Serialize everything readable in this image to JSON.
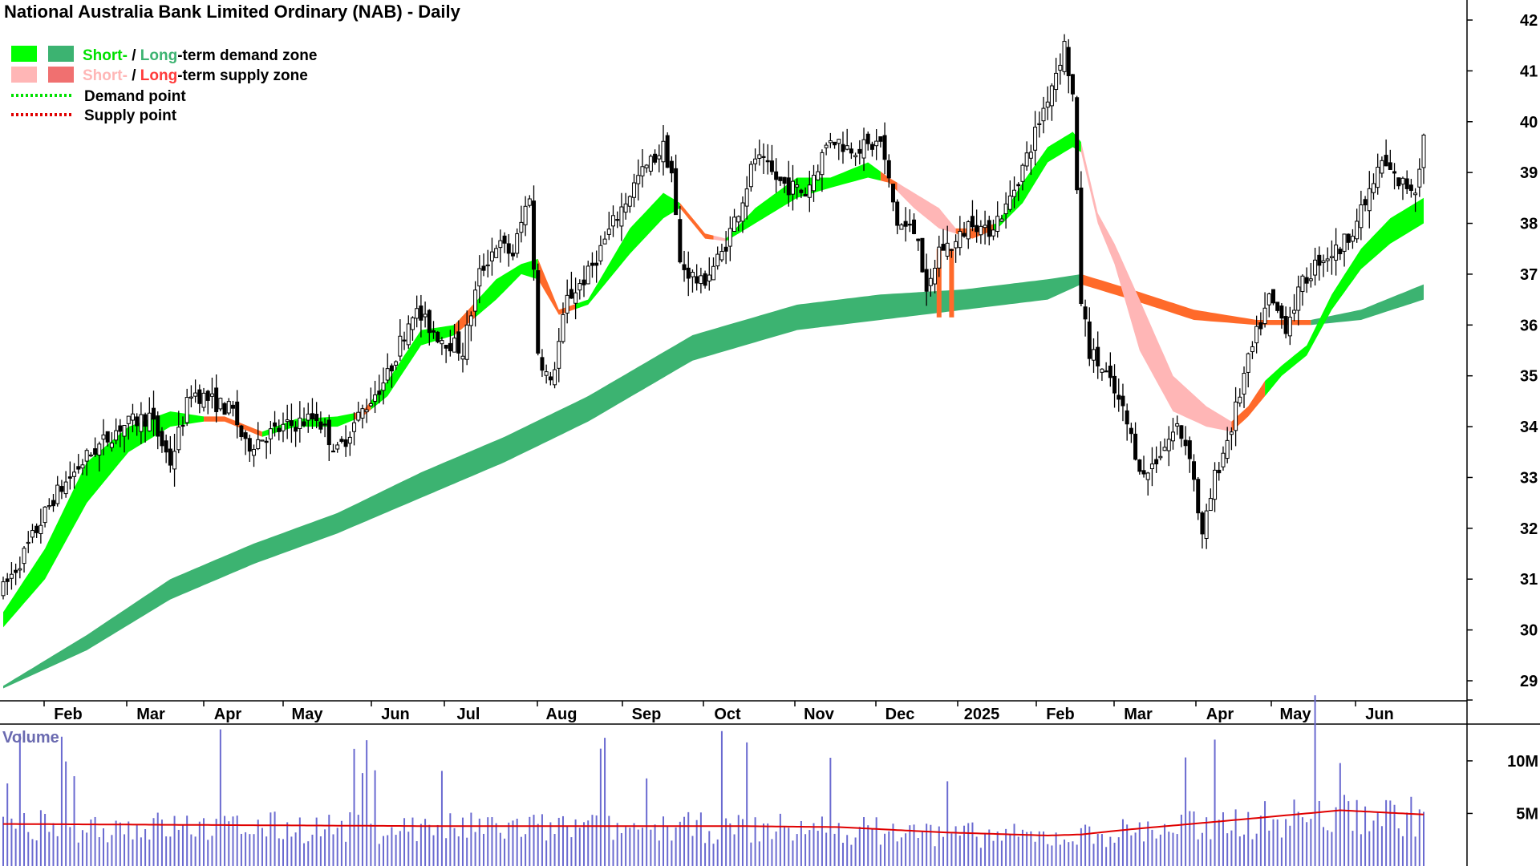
{
  "chart_data": {
    "type": "candlestick",
    "title": "National Australia Bank Limited Ordinary (NAB) - Daily",
    "legend": {
      "demand_zone": {
        "short": "Short-",
        "sep": " / ",
        "long": "Long",
        "rest": "-term demand zone"
      },
      "supply_zone": {
        "short": "Short-",
        "sep": " / ",
        "long": "Long",
        "rest": "-term supply zone"
      },
      "demand_point": "Demand point",
      "supply_point": "Supply point"
    },
    "colors": {
      "short_demand": "#00ff00",
      "long_demand": "#3cb371",
      "short_supply": "#ffb6b6",
      "long_supply": "#ff6a2a",
      "demand_point": "#00e000",
      "supply_point": "#e00000",
      "volume_bar": "#6a6ad0",
      "volume_ma": "#e00000",
      "volume_label": "#6a6ab0"
    },
    "y_axis": {
      "ticks": [
        "29",
        "30",
        "31",
        "32",
        "33",
        "34",
        "35",
        "36",
        "37",
        "38",
        "39",
        "40",
        "41",
        "42"
      ],
      "range": [
        28.5,
        42.3
      ]
    },
    "x_axis": {
      "labels": [
        "Feb",
        "Mar",
        "Apr",
        "May",
        "Jun",
        "Jul",
        "Aug",
        "Sep",
        "Oct",
        "Nov",
        "Dec",
        "2025",
        "Feb",
        "Mar",
        "Apr",
        "May",
        "Jun"
      ]
    },
    "price_path": [
      [
        0,
        30.8
      ],
      [
        5,
        31.5
      ],
      [
        12,
        32.6
      ],
      [
        20,
        33.4
      ],
      [
        28,
        34.0
      ],
      [
        35,
        34.2
      ],
      [
        40,
        33.3
      ],
      [
        45,
        34.7
      ],
      [
        50,
        34.5
      ],
      [
        55,
        34.3
      ],
      [
        58,
        33.6
      ],
      [
        62,
        33.8
      ],
      [
        68,
        34.0
      ],
      [
        75,
        34.2
      ],
      [
        80,
        33.5
      ],
      [
        85,
        34.2
      ],
      [
        92,
        35.0
      ],
      [
        98,
        36.3
      ],
      [
        104,
        35.8
      ],
      [
        110,
        35.5
      ],
      [
        114,
        37.0
      ],
      [
        118,
        37.6
      ],
      [
        122,
        37.4
      ],
      [
        126,
        38.6
      ],
      [
        128,
        35.5
      ],
      [
        131,
        34.8
      ],
      [
        135,
        36.5
      ],
      [
        140,
        37.0
      ],
      [
        146,
        38.0
      ],
      [
        152,
        38.9
      ],
      [
        158,
        39.5
      ],
      [
        160,
        39.0
      ],
      [
        162,
        37.2
      ],
      [
        167,
        36.8
      ],
      [
        172,
        37.4
      ],
      [
        177,
        38.5
      ],
      [
        180,
        39.3
      ],
      [
        186,
        38.8
      ],
      [
        192,
        38.6
      ],
      [
        198,
        39.7
      ],
      [
        202,
        39.5
      ],
      [
        207,
        39.5
      ],
      [
        210,
        39.6
      ],
      [
        214,
        38.0
      ],
      [
        219,
        37.8
      ],
      [
        221,
        36.5
      ],
      [
        224,
        37.5
      ],
      [
        228,
        37.6
      ],
      [
        232,
        38.1
      ],
      [
        235,
        37.8
      ],
      [
        240,
        38.3
      ],
      [
        245,
        39.3
      ],
      [
        250,
        40.5
      ],
      [
        254,
        41.5
      ],
      [
        256,
        40.5
      ],
      [
        258,
        36.5
      ],
      [
        260,
        35.5
      ],
      [
        264,
        35.0
      ],
      [
        268,
        34.3
      ],
      [
        273,
        33.0
      ],
      [
        277,
        33.5
      ],
      [
        281,
        34.0
      ],
      [
        284,
        33.5
      ],
      [
        287,
        31.8
      ],
      [
        290,
        33.0
      ],
      [
        294,
        34.0
      ],
      [
        297,
        35.0
      ],
      [
        300,
        35.8
      ],
      [
        303,
        36.5
      ],
      [
        307,
        36.0
      ],
      [
        311,
        36.8
      ],
      [
        315,
        37.3
      ],
      [
        320,
        37.5
      ],
      [
        325,
        38.2
      ],
      [
        330,
        39.2
      ],
      [
        334,
        38.8
      ],
      [
        338,
        38.7
      ],
      [
        340,
        39.7
      ]
    ],
    "short_zone_path": [
      [
        0,
        [
          30.05,
          30.35
        ]
      ],
      [
        10,
        [
          31.0,
          31.6
        ]
      ],
      [
        20,
        [
          32.5,
          33.3
        ]
      ],
      [
        30,
        [
          33.5,
          34.0
        ]
      ],
      [
        40,
        [
          34.0,
          34.3
        ]
      ],
      [
        48,
        [
          34.1,
          34.2
        ]
      ],
      [
        53,
        [
          34.1,
          34.2
        ]
      ],
      [
        62,
        [
          33.8,
          33.9
        ]
      ],
      [
        70,
        [
          34.0,
          34.15
        ]
      ],
      [
        80,
        [
          34.0,
          34.2
        ]
      ],
      [
        86,
        [
          34.2,
          34.3
        ]
      ],
      [
        92,
        [
          34.6,
          34.9
        ]
      ],
      [
        100,
        [
          35.6,
          35.9
        ]
      ],
      [
        108,
        [
          35.8,
          36.0
        ]
      ],
      [
        118,
        [
          36.5,
          36.9
        ]
      ],
      [
        124,
        [
          37.0,
          37.2
        ]
      ],
      [
        128,
        [
          36.9,
          37.3
        ]
      ],
      [
        133,
        [
          36.2,
          36.3
        ]
      ],
      [
        140,
        [
          36.4,
          36.5
        ]
      ],
      [
        150,
        [
          37.4,
          37.9
        ]
      ],
      [
        158,
        [
          38.1,
          38.6
        ]
      ],
      [
        162,
        [
          38.3,
          38.4
        ]
      ],
      [
        168,
        [
          37.7,
          37.8
        ]
      ],
      [
        173,
        [
          37.65,
          37.7
        ]
      ],
      [
        180,
        [
          38.0,
          38.3
        ]
      ],
      [
        190,
        [
          38.5,
          38.9
        ]
      ],
      [
        198,
        [
          38.7,
          38.9
        ]
      ],
      [
        207,
        [
          38.9,
          39.2
        ]
      ],
      [
        212,
        [
          38.8,
          38.9
        ]
      ],
      [
        218,
        [
          38.3,
          38.6
        ]
      ],
      [
        224,
        [
          37.9,
          38.3
        ]
      ],
      [
        228,
        [
          37.8,
          37.9
        ]
      ],
      [
        232,
        [
          37.7,
          37.9
        ]
      ],
      [
        238,
        [
          37.9,
          38.0
        ]
      ],
      [
        244,
        [
          38.4,
          38.8
        ]
      ],
      [
        250,
        [
          39.2,
          39.5
        ]
      ],
      [
        256,
        [
          39.5,
          39.8
        ]
      ],
      [
        258,
        [
          39.4,
          39.6
        ]
      ],
      [
        262,
        [
          38.0,
          38.2
        ]
      ],
      [
        266,
        [
          37.2,
          37.6
        ]
      ],
      [
        272,
        [
          35.5,
          36.5
        ]
      ],
      [
        280,
        [
          34.3,
          35.0
        ]
      ],
      [
        288,
        [
          34.0,
          34.4
        ]
      ],
      [
        294,
        [
          33.9,
          34.1
        ]
      ],
      [
        298,
        [
          34.2,
          34.4
        ]
      ],
      [
        302,
        [
          34.6,
          34.9
        ]
      ],
      [
        306,
        [
          35.0,
          35.2
        ]
      ],
      [
        312,
        [
          35.4,
          35.6
        ]
      ],
      [
        318,
        [
          36.3,
          36.6
        ]
      ],
      [
        325,
        [
          37.1,
          37.5
        ]
      ],
      [
        332,
        [
          37.6,
          38.1
        ]
      ],
      [
        338,
        [
          37.9,
          38.4
        ]
      ],
      [
        340,
        [
          38.0,
          38.5
        ]
      ]
    ],
    "long_zone_path": [
      [
        0,
        [
          28.85,
          28.9
        ]
      ],
      [
        20,
        [
          29.6,
          29.9
        ]
      ],
      [
        40,
        [
          30.6,
          31.0
        ]
      ],
      [
        60,
        [
          31.3,
          31.7
        ]
      ],
      [
        80,
        [
          31.9,
          32.3
        ]
      ],
      [
        100,
        [
          32.6,
          33.1
        ]
      ],
      [
        120,
        [
          33.3,
          33.8
        ]
      ],
      [
        140,
        [
          34.1,
          34.6
        ]
      ],
      [
        165,
        [
          35.3,
          35.8
        ]
      ],
      [
        190,
        [
          35.9,
          36.4
        ]
      ],
      [
        210,
        [
          36.1,
          36.6
        ]
      ],
      [
        230,
        [
          36.3,
          36.7
        ]
      ],
      [
        250,
        [
          36.5,
          36.9
        ]
      ],
      [
        258,
        [
          36.8,
          37.0
        ]
      ],
      [
        270,
        [
          36.5,
          36.7
        ]
      ],
      [
        285,
        [
          36.1,
          36.3
        ]
      ],
      [
        300,
        [
          36.0,
          36.1
        ]
      ],
      [
        313,
        [
          36.0,
          36.1
        ]
      ],
      [
        325,
        [
          36.1,
          36.3
        ]
      ],
      [
        340,
        [
          36.5,
          36.8
        ]
      ]
    ],
    "volume": {
      "label": "Volume",
      "ticks": [
        {
          "label": "10M",
          "value": 10
        },
        {
          "label": "5M",
          "value": 5
        }
      ],
      "range": [
        0,
        13.5
      ],
      "ma_path": [
        [
          0,
          4.0
        ],
        [
          50,
          3.9
        ],
        [
          100,
          3.8
        ],
        [
          150,
          3.8
        ],
        [
          175,
          3.8
        ],
        [
          200,
          3.7
        ],
        [
          225,
          3.2
        ],
        [
          250,
          2.9
        ],
        [
          258,
          3.0
        ],
        [
          270,
          3.5
        ],
        [
          290,
          4.2
        ],
        [
          312,
          5.0
        ],
        [
          320,
          5.3
        ],
        [
          340,
          4.9
        ]
      ]
    }
  }
}
